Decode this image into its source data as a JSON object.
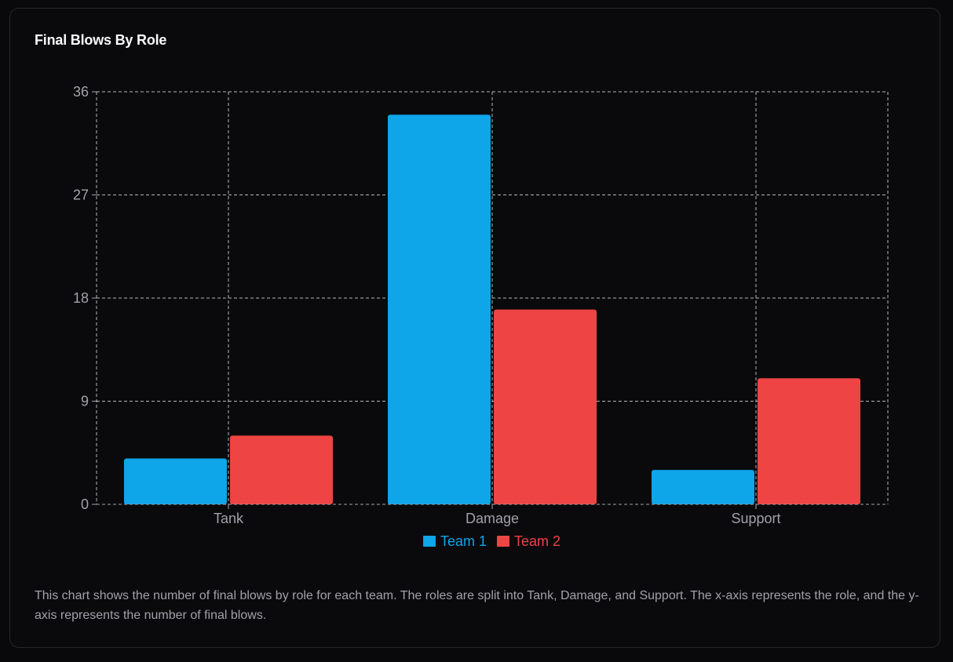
{
  "card": {
    "title": "Final Blows By Role",
    "description": "This chart shows the number of final blows by role for each team. The roles are split into Tank, Damage, and Support. The x-axis represents the role, and the y-axis represents the number of final blows."
  },
  "chart_data": {
    "type": "bar",
    "title": "Final Blows By Role",
    "xlabel": "",
    "ylabel": "",
    "categories": [
      "Tank",
      "Damage",
      "Support"
    ],
    "series": [
      {
        "name": "Team 1",
        "color": "#0ea5e9",
        "values": [
          4,
          34,
          3
        ]
      },
      {
        "name": "Team 2",
        "color": "#ef4444",
        "values": [
          6,
          17,
          11
        ]
      }
    ],
    "ylim": [
      0,
      36
    ],
    "yticks": [
      "0",
      "9",
      "18",
      "27",
      "36"
    ],
    "grid": true,
    "grid_color": "#d4d4d8",
    "legend_position": "bottom"
  }
}
